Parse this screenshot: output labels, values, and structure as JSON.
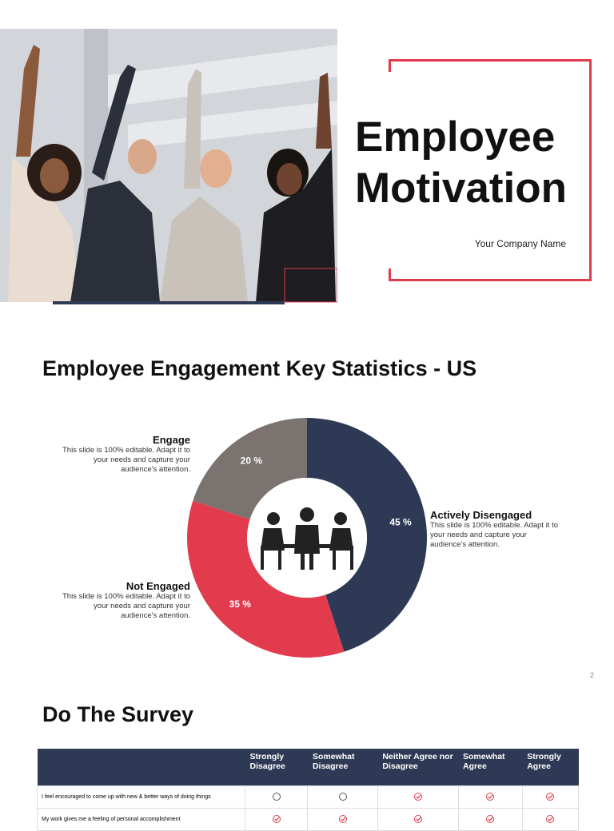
{
  "cover": {
    "title_lines": [
      "Employee",
      "Motivation"
    ],
    "company": "Your Company Name"
  },
  "stats": {
    "title": "Employee Engagement Key Statistics - US",
    "page_number": "2",
    "chart_data": {
      "type": "donut",
      "categories": [
        "Actively Disengaged",
        "Not Engaged",
        "Engage"
      ],
      "values": [
        45,
        35,
        20
      ],
      "value_labels": [
        "45 %",
        "35 %",
        "20 %"
      ],
      "colors": [
        "#2e3a55",
        "#e23b4e",
        "#7a7370"
      ],
      "descriptions": [
        "This slide is 100% editable. Adapt it to your needs and capture your audience's attention.",
        "This slide is 100% editable. Adapt it to your needs and capture your audience's attention.",
        "This slide is 100% editable. Adapt it to your needs and capture your audience's attention."
      ]
    }
  },
  "survey": {
    "title": "Do The Survey",
    "table": {
      "columns": [
        "Strongly Disagree",
        "Somewhat Disagree",
        "Neither Agree nor Disagree",
        "Somewhat Agree",
        "Strongly Agree"
      ],
      "rows": [
        "I feel encouraged to come up with new & better ways of doing things",
        "My work gives me a feeling of personal accomplishment"
      ]
    }
  }
}
